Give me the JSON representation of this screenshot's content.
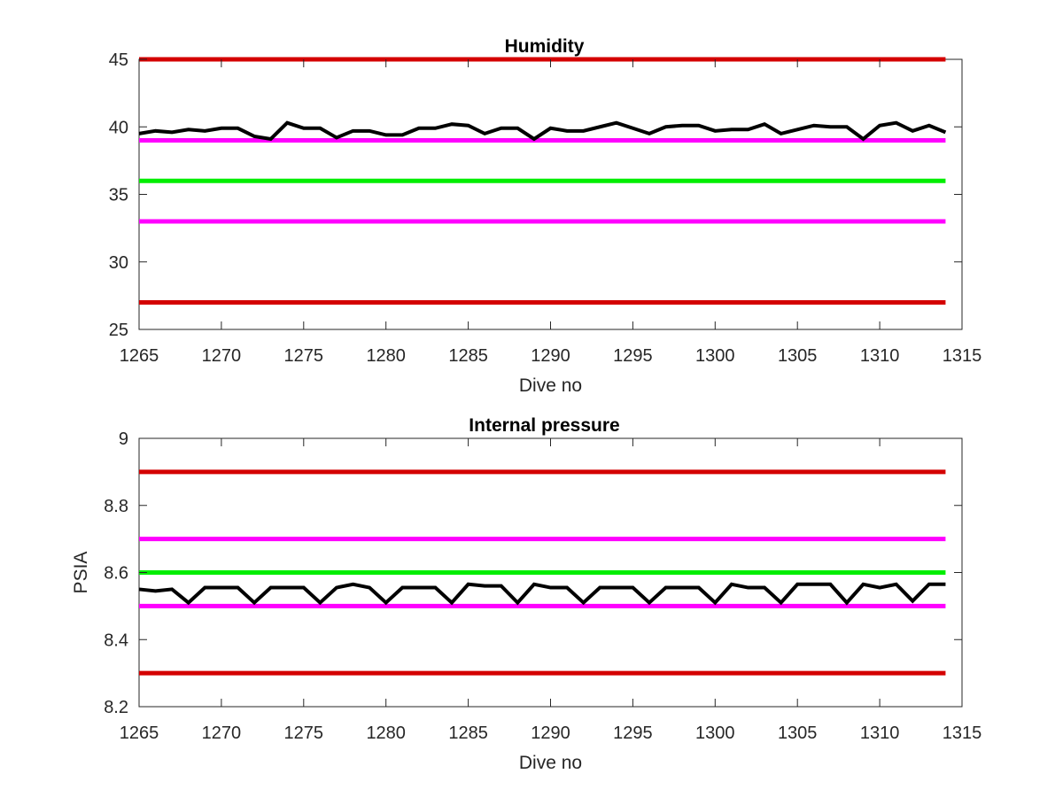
{
  "chart_data": [
    {
      "type": "line",
      "title": "Humidity",
      "xlabel": "Dive no",
      "ylabel": "",
      "xlim": [
        1265,
        1315
      ],
      "ylim": [
        25,
        45
      ],
      "xticks": [
        1265,
        1270,
        1275,
        1280,
        1285,
        1290,
        1295,
        1300,
        1305,
        1310,
        1315
      ],
      "yticks": [
        25,
        30,
        35,
        40,
        45
      ],
      "grid": false,
      "thresholds": [
        {
          "value": 45,
          "x_range": [
            1265,
            1314
          ],
          "color": "#d40000"
        },
        {
          "value": 39,
          "x_range": [
            1265,
            1314
          ],
          "color": "#ff00ff"
        },
        {
          "value": 36,
          "x_range": [
            1265,
            1314
          ],
          "color": "#00ee00"
        },
        {
          "value": 33,
          "x_range": [
            1265,
            1314
          ],
          "color": "#ff00ff"
        },
        {
          "value": 27,
          "x_range": [
            1265,
            1314
          ],
          "color": "#d40000"
        }
      ],
      "series": [
        {
          "color": "#000000",
          "x": [
            1265,
            1266,
            1267,
            1268,
            1269,
            1270,
            1271,
            1272,
            1273,
            1274,
            1275,
            1276,
            1277,
            1278,
            1279,
            1280,
            1281,
            1282,
            1283,
            1284,
            1285,
            1286,
            1287,
            1288,
            1289,
            1290,
            1291,
            1292,
            1293,
            1294,
            1295,
            1296,
            1297,
            1298,
            1299,
            1300,
            1301,
            1302,
            1303,
            1304,
            1305,
            1306,
            1307,
            1308,
            1309,
            1310,
            1311,
            1312,
            1313,
            1314
          ],
          "values": [
            39.5,
            39.7,
            39.6,
            39.8,
            39.7,
            39.9,
            39.9,
            39.3,
            39.1,
            40.3,
            39.9,
            39.9,
            39.2,
            39.7,
            39.7,
            39.4,
            39.4,
            39.9,
            39.9,
            40.2,
            40.1,
            39.5,
            39.9,
            39.9,
            39.1,
            39.9,
            39.7,
            39.7,
            40.0,
            40.3,
            39.9,
            39.5,
            40.0,
            40.1,
            40.1,
            39.7,
            39.8,
            39.8,
            40.2,
            39.5,
            39.8,
            40.1,
            40.0,
            40.0,
            39.1,
            40.1,
            40.3,
            39.7,
            40.1,
            39.6
          ]
        }
      ]
    },
    {
      "type": "line",
      "title": "Internal pressure",
      "xlabel": "Dive no",
      "ylabel": "PSIA",
      "xlim": [
        1265,
        1315
      ],
      "ylim": [
        8.2,
        9
      ],
      "xticks": [
        1265,
        1270,
        1275,
        1280,
        1285,
        1290,
        1295,
        1300,
        1305,
        1310,
        1315
      ],
      "yticks": [
        "8.2",
        "8.4",
        "8.6",
        "8.8",
        "9"
      ],
      "grid": false,
      "thresholds": [
        {
          "value": 8.9,
          "x_range": [
            1265,
            1314
          ],
          "color": "#d40000"
        },
        {
          "value": 8.7,
          "x_range": [
            1265,
            1314
          ],
          "color": "#ff00ff"
        },
        {
          "value": 8.6,
          "x_range": [
            1265,
            1314
          ],
          "color": "#00ee00"
        },
        {
          "value": 8.5,
          "x_range": [
            1265,
            1314
          ],
          "color": "#ff00ff"
        },
        {
          "value": 8.3,
          "x_range": [
            1265,
            1314
          ],
          "color": "#d40000"
        }
      ],
      "series": [
        {
          "color": "#000000",
          "x": [
            1265,
            1266,
            1267,
            1268,
            1269,
            1270,
            1271,
            1272,
            1273,
            1274,
            1275,
            1276,
            1277,
            1278,
            1279,
            1280,
            1281,
            1282,
            1283,
            1284,
            1285,
            1286,
            1287,
            1288,
            1289,
            1290,
            1291,
            1292,
            1293,
            1294,
            1295,
            1296,
            1297,
            1298,
            1299,
            1300,
            1301,
            1302,
            1303,
            1304,
            1305,
            1306,
            1307,
            1308,
            1309,
            1310,
            1311,
            1312,
            1313,
            1314
          ],
          "values": [
            8.55,
            8.545,
            8.55,
            8.51,
            8.555,
            8.555,
            8.555,
            8.51,
            8.555,
            8.555,
            8.555,
            8.51,
            8.555,
            8.565,
            8.555,
            8.51,
            8.555,
            8.555,
            8.555,
            8.51,
            8.565,
            8.56,
            8.56,
            8.51,
            8.565,
            8.555,
            8.555,
            8.51,
            8.555,
            8.555,
            8.555,
            8.51,
            8.555,
            8.555,
            8.555,
            8.51,
            8.565,
            8.555,
            8.555,
            8.51,
            8.565,
            8.565,
            8.565,
            8.51,
            8.565,
            8.555,
            8.565,
            8.515,
            8.565,
            8.565
          ]
        }
      ]
    }
  ]
}
